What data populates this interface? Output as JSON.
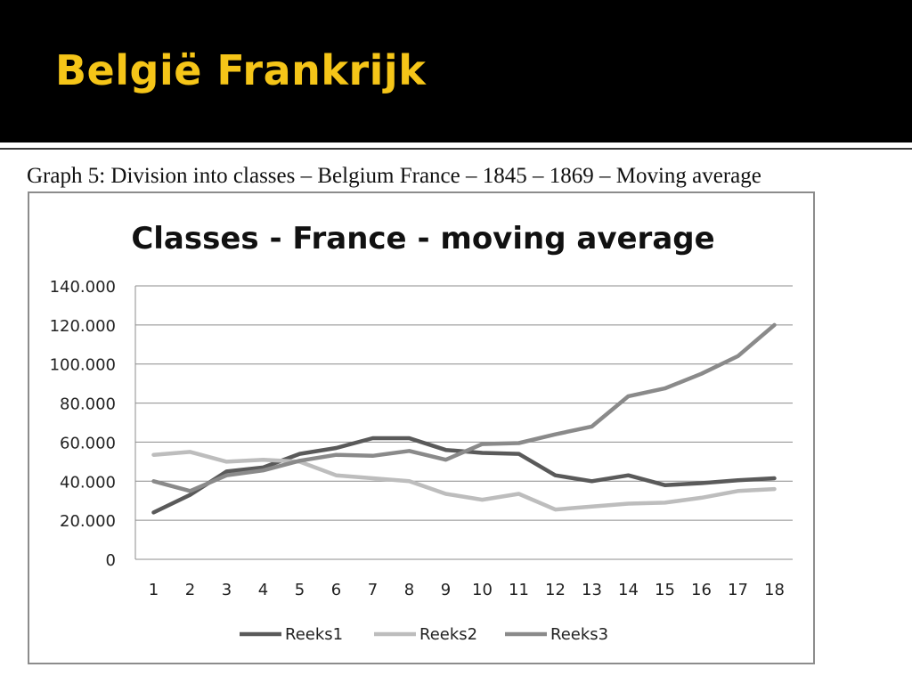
{
  "slide": {
    "title": "België Frankrijk"
  },
  "caption": "Graph 5: Division into classes – Belgium France – 1845 – 1869 – Moving average",
  "chart_data": {
    "type": "line",
    "title": "Classes - France - moving average",
    "xlabel": "",
    "ylabel": "",
    "categories": [
      "1",
      "2",
      "3",
      "4",
      "5",
      "6",
      "7",
      "8",
      "9",
      "10",
      "11",
      "12",
      "13",
      "14",
      "15",
      "16",
      "17",
      "18"
    ],
    "ylim": [
      0,
      140000
    ],
    "yticks": [
      0,
      20000,
      40000,
      60000,
      80000,
      100000,
      120000,
      140000
    ],
    "ytick_labels": [
      "0",
      "20.000",
      "40.000",
      "60.000",
      "80.000",
      "100.000",
      "120.000",
      "140.000"
    ],
    "grid": true,
    "legend_position": "bottom",
    "series": [
      {
        "name": "Reeks1",
        "color": "#5a5a5a",
        "values": [
          24000,
          33000,
          45000,
          47000,
          54000,
          57000,
          62000,
          62000,
          56000,
          54500,
          54000,
          43000,
          40000,
          43000,
          38000,
          39000,
          40500,
          41500
        ]
      },
      {
        "name": "Reeks2",
        "color": "#bdbdbd",
        "values": [
          53500,
          55000,
          50000,
          51000,
          50000,
          43000,
          41500,
          40000,
          33500,
          30500,
          33500,
          25500,
          27000,
          28500,
          29000,
          31500,
          35000,
          36000
        ]
      },
      {
        "name": "Reeks3",
        "color": "#8a8a8a",
        "values": [
          40000,
          35000,
          43000,
          45500,
          50500,
          53500,
          53000,
          55500,
          51000,
          59000,
          59500,
          64000,
          68000,
          83500,
          87500,
          95000,
          104000,
          120000
        ]
      }
    ]
  }
}
